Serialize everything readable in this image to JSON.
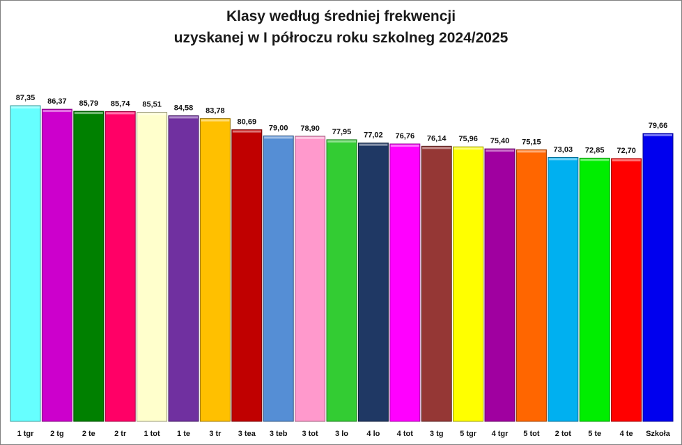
{
  "chart_data": {
    "type": "bar",
    "title_line1": "Klasy według średniej frekwencji",
    "title_line2": "uzyskanej w I półroczu roku szkolneg 2024/2025",
    "xlabel": "",
    "ylabel": "",
    "ylim": [
      0,
      87.35
    ],
    "grid": false,
    "categories": [
      "1 tgr",
      "2 tg",
      "2 te",
      "2 tr",
      "1 tot",
      "1 te",
      "3 tr",
      "3 tea",
      "3 teb",
      "3 tot",
      "3 lo",
      "4 lo",
      "4 tot",
      "3 tg",
      "5 tgr",
      "4 tgr",
      "5 tot",
      "2 tot",
      "5 te",
      "4 te",
      "Szkoła"
    ],
    "values": [
      87.35,
      86.37,
      85.79,
      85.74,
      85.51,
      84.58,
      83.78,
      80.69,
      79.0,
      78.9,
      77.95,
      77.02,
      76.76,
      76.14,
      75.96,
      75.4,
      75.15,
      73.03,
      72.85,
      72.7,
      79.66
    ],
    "value_labels": [
      "87,35",
      "86,37",
      "85,79",
      "85,74",
      "85,51",
      "84,58",
      "83,78",
      "80,69",
      "79,00",
      "78,90",
      "77,95",
      "77,02",
      "76,76",
      "76,14",
      "75,96",
      "75,40",
      "75,15",
      "73,03",
      "72,85",
      "72,70",
      "79,66"
    ],
    "colors": [
      "#66ffff",
      "#cc00cc",
      "#008000",
      "#ff0066",
      "#ffffcc",
      "#7030a0",
      "#ffc000",
      "#c00000",
      "#558ed5",
      "#ff99cc",
      "#33cc33",
      "#1f3864",
      "#ff00ff",
      "#953735",
      "#ffff00",
      "#a000a0",
      "#ff6600",
      "#00b0f0",
      "#00ee00",
      "#ff0000",
      "#0000ee"
    ]
  }
}
